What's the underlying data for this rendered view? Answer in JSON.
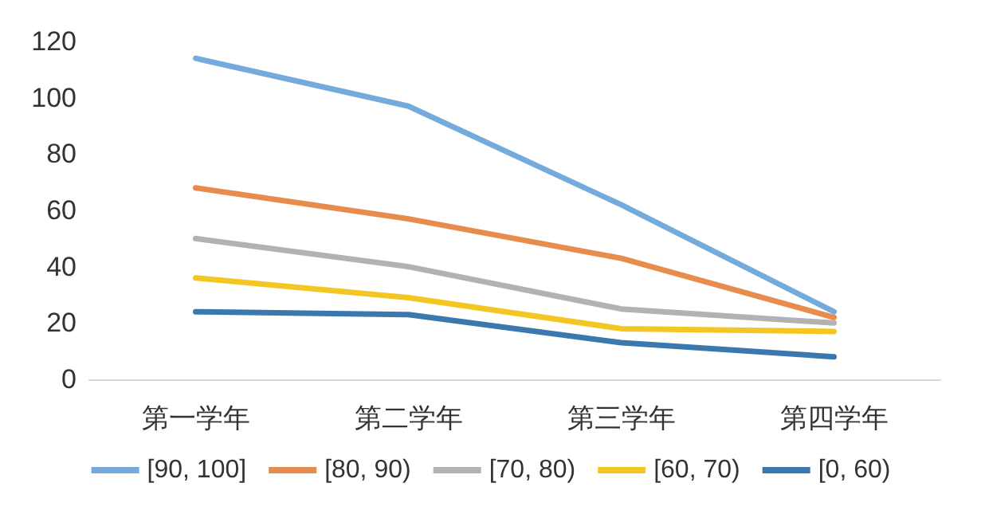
{
  "chart_data": {
    "type": "line",
    "categories": [
      "第一学年",
      "第二学年",
      "第三学年",
      "第四学年"
    ],
    "series": [
      {
        "name": "[90, 100]",
        "color": "#75abdc",
        "values": [
          114,
          97,
          62,
          24
        ]
      },
      {
        "name": "[80, 90)",
        "color": "#e88c4e",
        "values": [
          68,
          57,
          43,
          22
        ]
      },
      {
        "name": "[70, 80)",
        "color": "#b2b2b2",
        "values": [
          50,
          40,
          25,
          20
        ]
      },
      {
        "name": "[60, 70)",
        "color": "#f3c623",
        "values": [
          36,
          29,
          18,
          17
        ]
      },
      {
        "name": "[0, 60)",
        "color": "#3b78ad",
        "values": [
          24,
          23,
          13,
          8
        ]
      }
    ],
    "ylim": [
      0,
      120
    ],
    "yticks": [
      0,
      20,
      40,
      60,
      80,
      100,
      120
    ],
    "grid": false,
    "legend": "bottom",
    "marker": "none",
    "line_style": "solid"
  }
}
